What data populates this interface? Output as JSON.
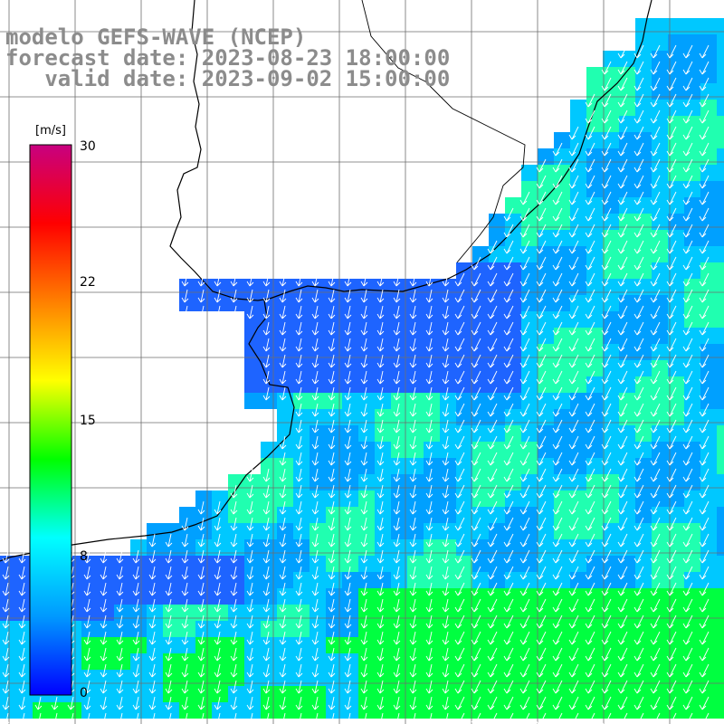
{
  "map": {
    "model_title": "modelo GEFS-WAVE (NCEP)",
    "forecast_line": "forecast date: 2023-08-23 18:00:00",
    "valid_line": "   valid date: 2023-09-02 15:00:00"
  },
  "colorbar": {
    "unit": "[m/s]",
    "tick_labels": [
      "30",
      "22",
      "15",
      "8",
      "0"
    ],
    "min": 0,
    "max": 30,
    "colors": [
      "#0000ff",
      "#0099ff",
      "#00ffff",
      "#00ff00",
      "#ffff00",
      "#ff8000",
      "#ff0000",
      "#c80080"
    ]
  },
  "colors": {
    "land": "#ffffff",
    "coastline": "#000000",
    "grid": "#6e6e6e",
    "arrows": "#ffffff",
    "title": "#8c8c8c",
    "sea_slow": "#1e64ff",
    "sea_mid": "#00c8ff",
    "sea_fast": "#00ff40"
  }
}
